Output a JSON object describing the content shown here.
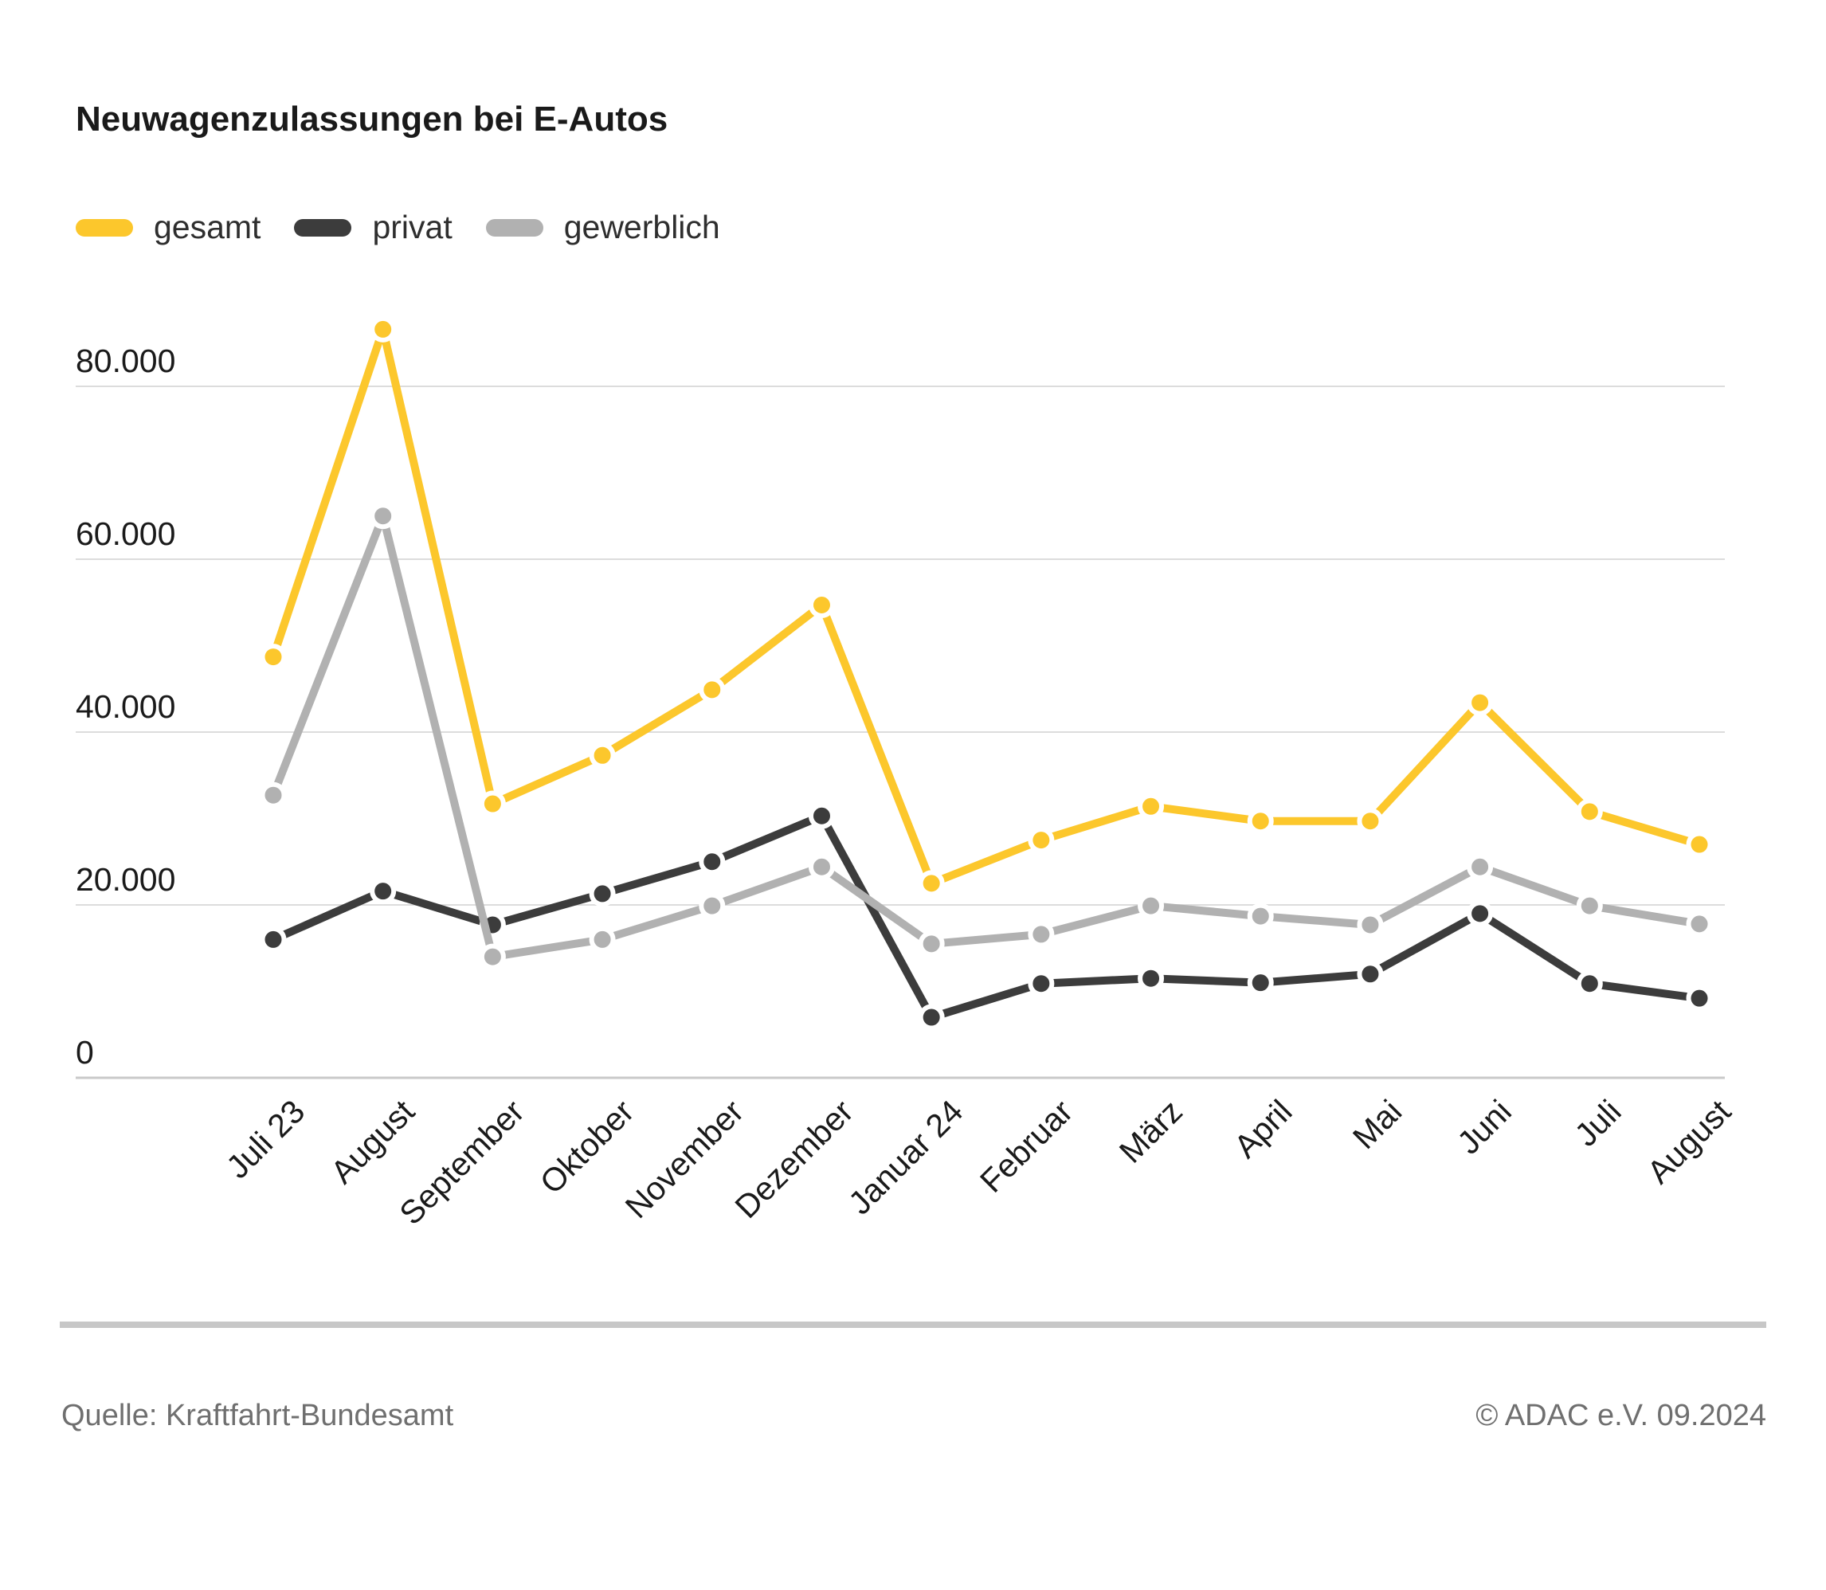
{
  "title": "Neuwagenzulassungen bei E-Autos",
  "legend": [
    {
      "label": "gesamt",
      "color": "#FCC72C"
    },
    {
      "label": "privat",
      "color": "#3C3C3C"
    },
    {
      "label": "gewerblich",
      "color": "#B1B1B1"
    }
  ],
  "footer": {
    "source": "Quelle: Kraftfahrt-Bundesamt",
    "copyright": "© ADAC e.V. 09.2024"
  },
  "colors": {
    "gridline": "#dcdcdc",
    "axis_line": "#c9c9c9",
    "tick_label": "#1a1a1a",
    "background": "#ffffff"
  },
  "chart_data": {
    "type": "line",
    "title": "Neuwagenzulassungen bei E-Autos",
    "categories": [
      "Juli 23",
      "August",
      "September",
      "Oktober",
      "November",
      "Dezember",
      "Januar 24",
      "Februar",
      "März",
      "April",
      "Mai",
      "Juni",
      "Juli",
      "August"
    ],
    "series": [
      {
        "name": "privat",
        "color": "#3C3C3C",
        "values": [
          16000,
          21600,
          17700,
          21300,
          25000,
          30300,
          7000,
          10900,
          11500,
          11000,
          12000,
          19000,
          10900,
          9200
        ]
      },
      {
        "name": "gewerblich",
        "color": "#B1B1B1",
        "values": [
          32700,
          65000,
          14000,
          16000,
          19900,
          24400,
          15500,
          16600,
          19900,
          18700,
          17700,
          24400,
          19900,
          17800
        ]
      },
      {
        "name": "gesamt",
        "color": "#FCC72C",
        "values": [
          48700,
          86600,
          31700,
          37300,
          44900,
          54700,
          22500,
          27500,
          31400,
          29700,
          29700,
          43400,
          30800,
          27000
        ]
      }
    ],
    "xlabel": "",
    "ylabel": "",
    "ylim": [
      0,
      87000
    ],
    "yticks": [
      0,
      20000,
      40000,
      60000,
      80000
    ],
    "ytick_labels": [
      "0",
      "20.000",
      "40.000",
      "60.000",
      "80.000"
    ],
    "grid": "horizontal",
    "legend_position": "top-left",
    "legend_order": [
      "gesamt",
      "privat",
      "gewerblich"
    ]
  }
}
